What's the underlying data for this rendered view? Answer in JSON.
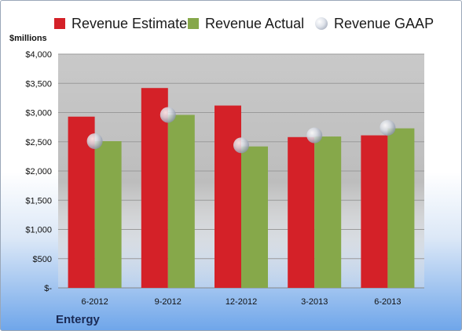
{
  "legend": {
    "estimate": "Revenue Estimate",
    "actual": "Revenue Actual",
    "gaap": "Revenue GAAP"
  },
  "unit_label": "$millions",
  "company": "Entergy",
  "colors": {
    "estimate": "#d42128",
    "actual": "#86a84a",
    "gaap_marker": "#c9ced8"
  },
  "chart_data": {
    "type": "bar",
    "categories": [
      "6-2012",
      "9-2012",
      "12-2012",
      "3-2013",
      "6-2013"
    ],
    "series": [
      {
        "name": "Revenue Estimate",
        "values": [
          2930,
          3420,
          3120,
          2580,
          2610
        ]
      },
      {
        "name": "Revenue Actual",
        "values": [
          2510,
          2960,
          2420,
          2590,
          2730
        ]
      },
      {
        "name": "Revenue GAAP",
        "values": [
          2510,
          2960,
          2440,
          2610,
          2740
        ]
      }
    ],
    "ylabel": "$millions",
    "ylim": [
      0,
      4000
    ],
    "yticks": [
      0,
      500,
      1000,
      1500,
      2000,
      2500,
      3000,
      3500,
      4000
    ],
    "ytick_labels": [
      "$-",
      "$500",
      "$1,000",
      "$1,500",
      "$2,000",
      "$2,500",
      "$3,000",
      "$3,500",
      "$4,000"
    ],
    "grid": true,
    "legend_position": "top"
  }
}
